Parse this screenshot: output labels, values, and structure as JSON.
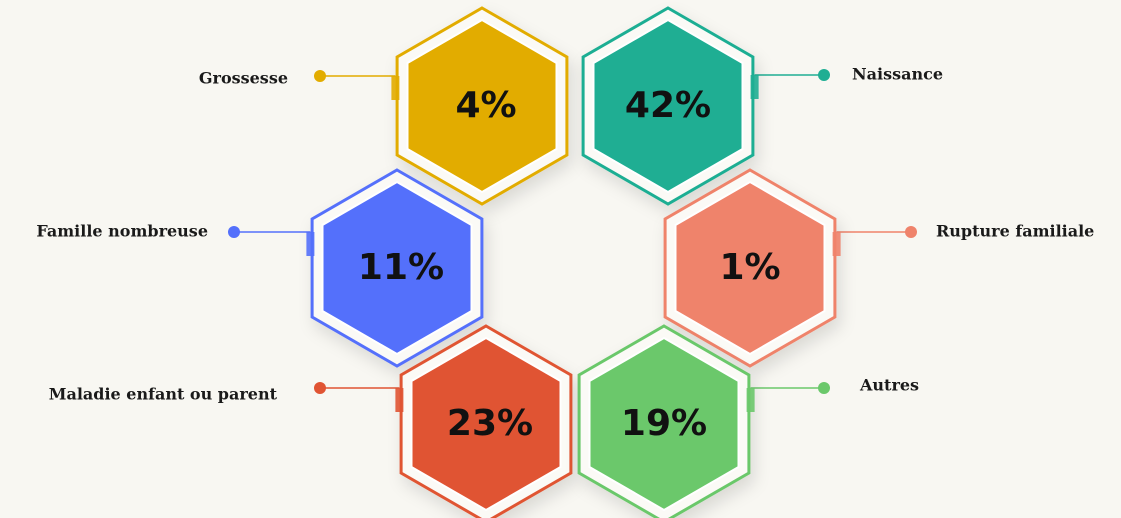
{
  "chart_data": {
    "type": "hexagon",
    "categories": [
      "Grossesse",
      "Naissance",
      "Famille nombreuse",
      "Rupture familiale",
      "Maladie enfant ou parent",
      "Autres"
    ],
    "values": [
      4,
      42,
      11,
      1,
      23,
      19
    ],
    "value_labels": [
      "4%",
      "42%",
      "11%",
      "1%",
      "23%",
      "19%"
    ],
    "colors": [
      "#e2ac00",
      "#1fae93",
      "#5470fb",
      "#ef836b",
      "#e05433",
      "#6bc86b"
    ]
  }
}
